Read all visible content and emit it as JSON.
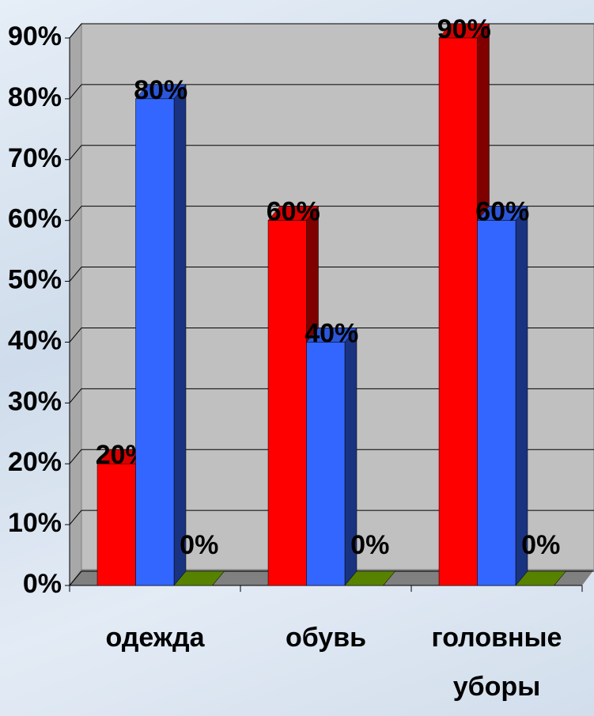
{
  "chart_data": {
    "type": "bar3d",
    "categories": [
      "одежда",
      "обувь",
      "головные уборы"
    ],
    "series": [
      {
        "color": "#ff0000",
        "values": [
          20,
          60,
          90
        ],
        "value_labels": [
          "20%",
          "60%",
          "90%"
        ]
      },
      {
        "color": "#3366ff",
        "values": [
          80,
          40,
          60
        ],
        "value_labels": [
          "80%",
          "40%",
          "60%"
        ]
      },
      {
        "color": "#669900",
        "values": [
          0,
          0,
          0
        ],
        "value_labels": [
          "0%",
          "0%",
          "0%"
        ]
      }
    ],
    "ylim": [
      0,
      90
    ],
    "yticks": [
      {
        "value": 0,
        "label": "0%"
      },
      {
        "value": 10,
        "label": "10%"
      },
      {
        "value": 20,
        "label": "20%"
      },
      {
        "value": 30,
        "label": "30%"
      },
      {
        "value": 40,
        "label": "40%"
      },
      {
        "value": 50,
        "label": "50%"
      },
      {
        "value": 60,
        "label": "60%"
      },
      {
        "value": 70,
        "label": "70%"
      },
      {
        "value": 80,
        "label": "80%"
      },
      {
        "value": 90,
        "label": "90%"
      }
    ],
    "grid": true
  }
}
